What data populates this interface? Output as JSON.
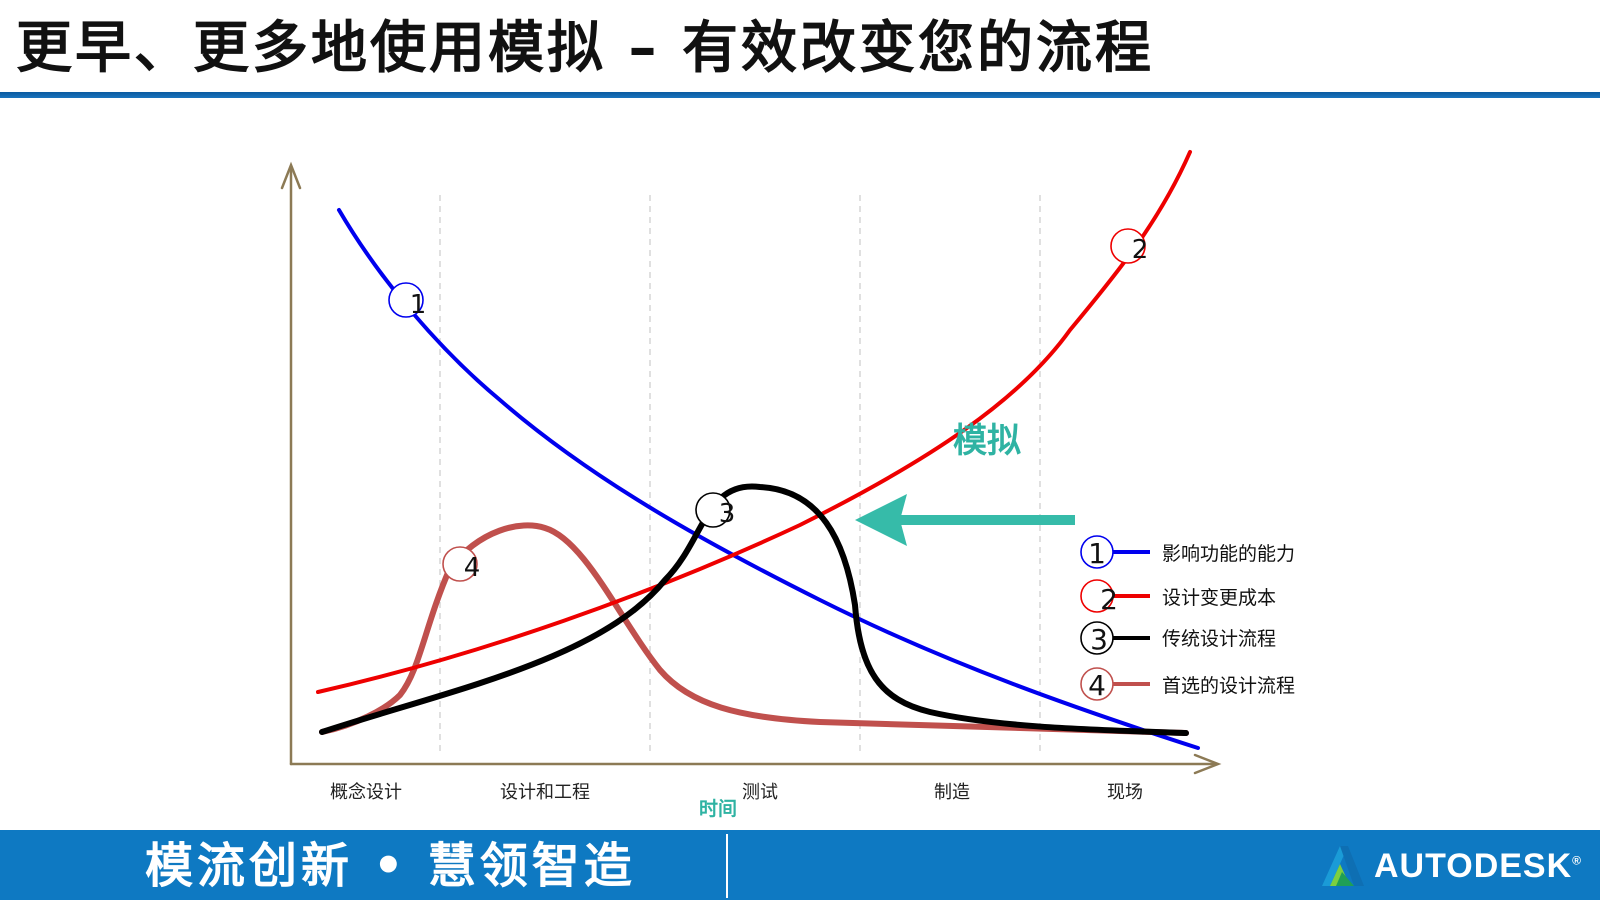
{
  "slide": {
    "title": "更早、更多地使用模拟 – 有效改变您的流程"
  },
  "diagram": {
    "phases": [
      "概念设计",
      "设计和工程",
      "测试",
      "制造",
      "现场"
    ],
    "x_axis_label": "时间",
    "simulation_label": "模拟",
    "curve_markers": [
      "1",
      "2",
      "3",
      "4"
    ],
    "legend": [
      {
        "number": "1",
        "label": "影响功能的能力",
        "color": "#0000ee"
      },
      {
        "number": "2",
        "label": "设计变更成本",
        "color": "#ee0000"
      },
      {
        "number": "3",
        "label": "传统设计流程",
        "color": "#000000"
      },
      {
        "number": "4",
        "label": "首选的设计流程",
        "color": "#c0504d"
      }
    ],
    "colors": {
      "axis": "#8c7a55",
      "arrow": "#36bba9",
      "simulation_text": "#2fb3a3"
    }
  },
  "footer": {
    "slogan_left": "模流创新",
    "separator": "•",
    "slogan_right": "慧领智造",
    "brand": "AUTODESK",
    "brand_mark": "®"
  }
}
